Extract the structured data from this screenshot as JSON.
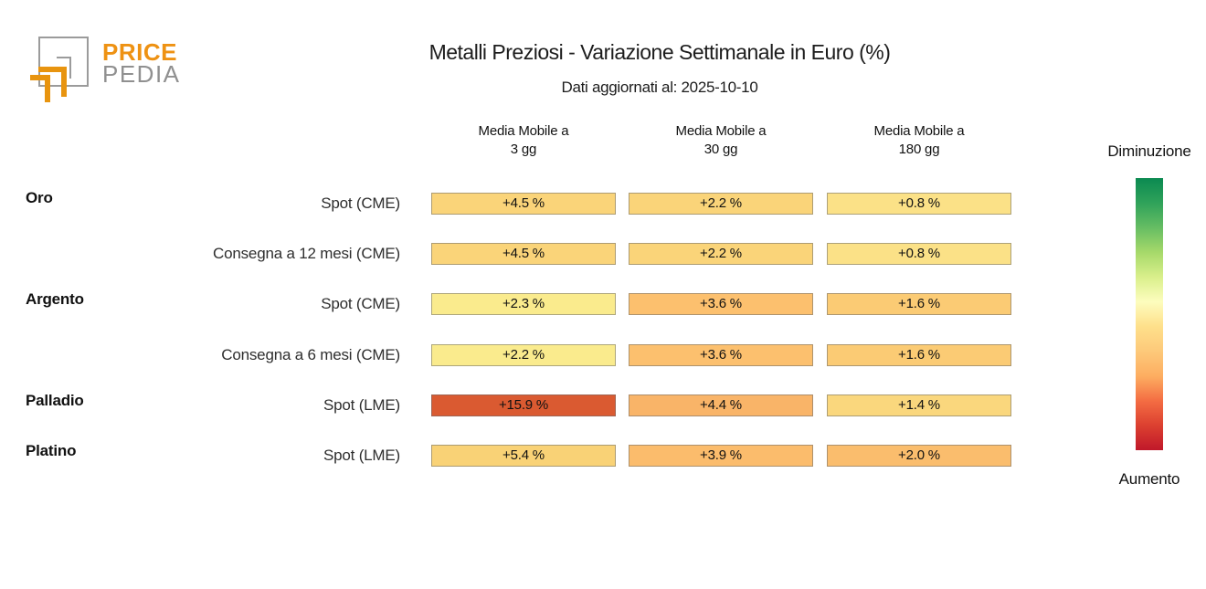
{
  "logo": {
    "brand_line1": "PRICE",
    "brand_line2": "PEDIA",
    "orange": "#ee9213",
    "gray": "#909090"
  },
  "header": {
    "title": "Metalli Preziosi - Variazione Settimanale in Euro (%)",
    "subtitle": "Dati aggiornati al: 2025-10-10"
  },
  "chart_data": {
    "type": "heatmap",
    "title": "Metalli Preziosi - Variazione Settimanale in Euro (%)",
    "subtitle": "Dati aggiornati al: 2025-10-10",
    "unit": "%",
    "columns": [
      {
        "label": "Media Mobile a 3 gg",
        "line1": "Media Mobile a",
        "line2": "3 gg"
      },
      {
        "label": "Media Mobile a 30 gg",
        "line1": "Media Mobile a",
        "line2": "30 gg"
      },
      {
        "label": "Media Mobile a 180 gg",
        "line1": "Media Mobile a",
        "line2": "180 gg"
      }
    ],
    "rows": [
      {
        "group": "Oro",
        "label": "Spot (CME)",
        "cells": [
          {
            "text": "+4.5 %",
            "value": 4.5,
            "color": "#fad479"
          },
          {
            "text": "+2.2 %",
            "value": 2.2,
            "color": "#fad479"
          },
          {
            "text": "+0.8 %",
            "value": 0.8,
            "color": "#fbe187"
          }
        ]
      },
      {
        "group": "",
        "label": "Consegna a 12 mesi (CME)",
        "cells": [
          {
            "text": "+4.5 %",
            "value": 4.5,
            "color": "#fad479"
          },
          {
            "text": "+2.2 %",
            "value": 2.2,
            "color": "#fad479"
          },
          {
            "text": "+0.8 %",
            "value": 0.8,
            "color": "#fbe187"
          }
        ]
      },
      {
        "group": "Argento",
        "label": "Spot (CME)",
        "cells": [
          {
            "text": "+2.3 %",
            "value": 2.3,
            "color": "#faeb8d"
          },
          {
            "text": "+3.6 %",
            "value": 3.6,
            "color": "#fcc06e"
          },
          {
            "text": "+1.6 %",
            "value": 1.6,
            "color": "#fbcb74"
          }
        ]
      },
      {
        "group": "",
        "label": "Consegna a 6 mesi (CME)",
        "cells": [
          {
            "text": "+2.2 %",
            "value": 2.2,
            "color": "#faeb8d"
          },
          {
            "text": "+3.6 %",
            "value": 3.6,
            "color": "#fcc06e"
          },
          {
            "text": "+1.6 %",
            "value": 1.6,
            "color": "#fbcb74"
          }
        ]
      },
      {
        "group": "Palladio",
        "label": "Spot (LME)",
        "cells": [
          {
            "text": "+15.9 %",
            "value": 15.9,
            "color": "#da5a31"
          },
          {
            "text": "+4.4 %",
            "value": 4.4,
            "color": "#f9b468"
          },
          {
            "text": "+1.4 %",
            "value": 1.4,
            "color": "#fad77d"
          }
        ]
      },
      {
        "group": "Platino",
        "label": "Spot (LME)",
        "cells": [
          {
            "text": "+5.4 %",
            "value": 5.4,
            "color": "#f9d276"
          },
          {
            "text": "+3.9 %",
            "value": 3.9,
            "color": "#fbbc6c"
          },
          {
            "text": "+2.0 %",
            "value": 2.0,
            "color": "#fabd6d"
          }
        ]
      }
    ],
    "legend": {
      "top_label": "Diminuzione",
      "bottom_label": "Aumento",
      "gradient_top_to_bottom": [
        "#0b8a51",
        "#2fa25a",
        "#66bd63",
        "#a6d96a",
        "#d9ef8b",
        "#fdfdbe",
        "#fee08b",
        "#fdc97a",
        "#fdae61",
        "#f46d43",
        "#dc4030",
        "#c0182a"
      ]
    }
  }
}
